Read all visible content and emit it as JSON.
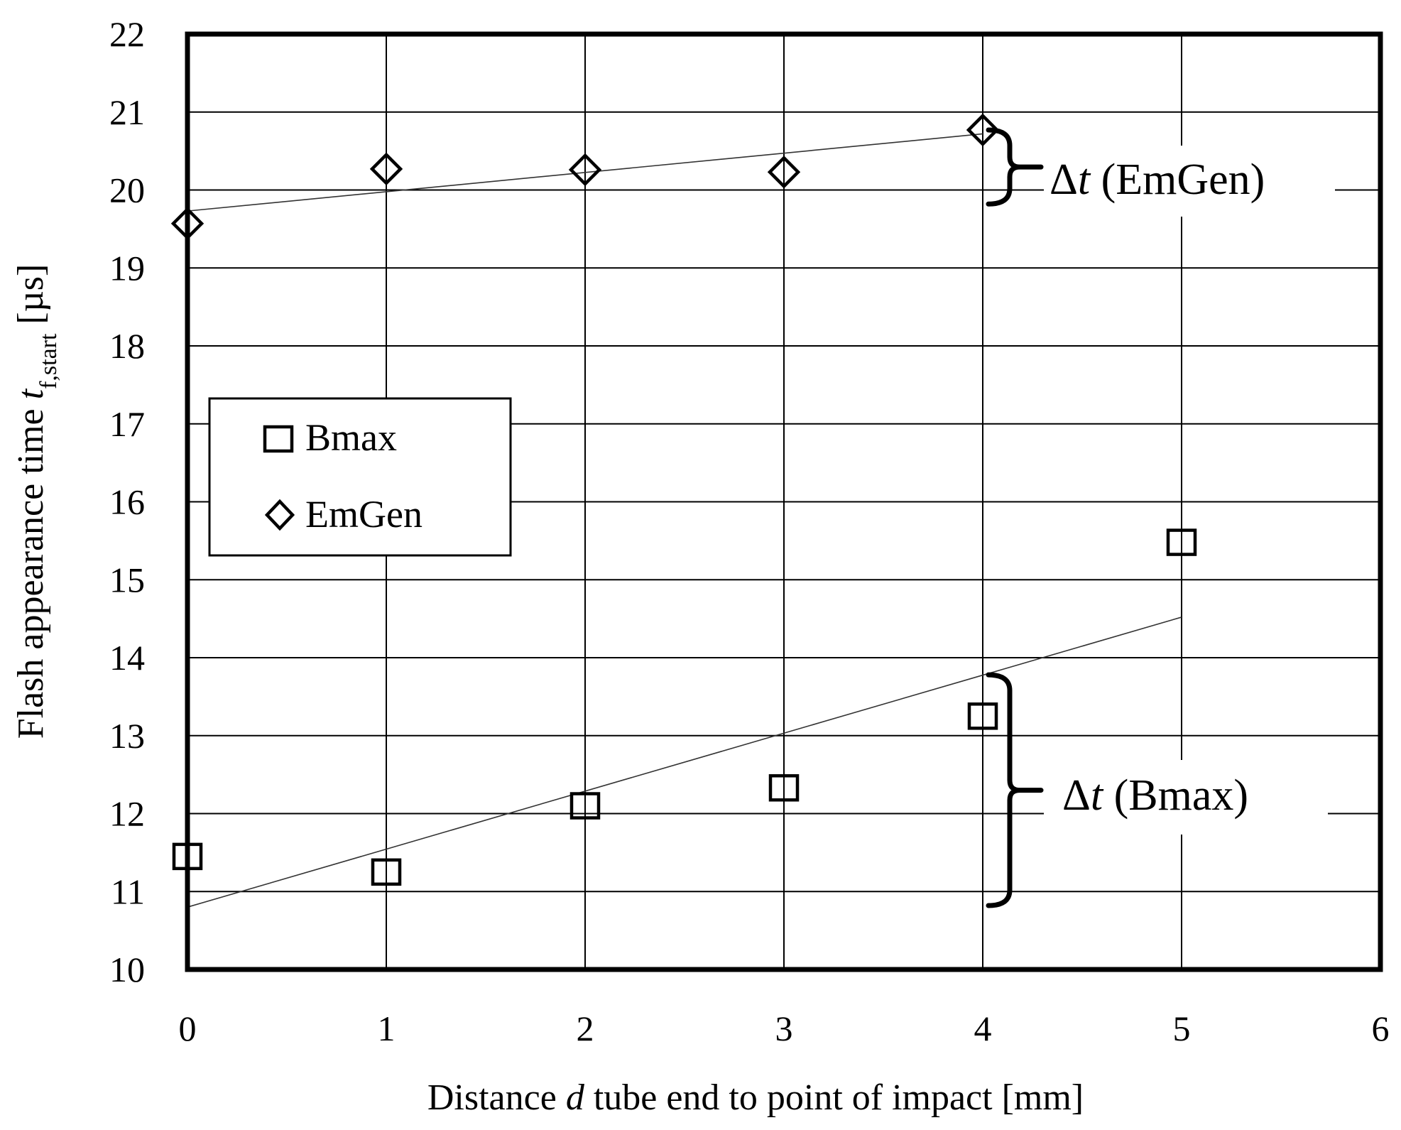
{
  "chart_data": {
    "type": "scatter",
    "title": "",
    "xlabel": {
      "prefix": "Distance ",
      "symbol": "d",
      "suffix": " tube end to point of impact [mm]"
    },
    "ylabel": {
      "prefix": "Flash appearance time ",
      "symbol": "t",
      "subscript": "f,start",
      "suffix": " [µs]"
    },
    "xlim": [
      0,
      6
    ],
    "ylim": [
      10,
      22
    ],
    "xticks": [
      "0",
      "1",
      "2",
      "3",
      "4",
      "5",
      "6"
    ],
    "yticks": [
      "10",
      "11",
      "12",
      "13",
      "14",
      "15",
      "16",
      "17",
      "18",
      "19",
      "20",
      "21",
      "22"
    ],
    "grid": true,
    "legend_position": "left-middle",
    "series": [
      {
        "name": "Bmax",
        "marker": "square",
        "x": [
          0,
          1,
          2,
          3,
          4,
          5
        ],
        "y": [
          11.45,
          11.25,
          12.1,
          12.33,
          13.25,
          15.48
        ],
        "trendline": {
          "x": [
            0,
            5
          ],
          "y": [
            10.8,
            14.52
          ]
        }
      },
      {
        "name": "EmGen",
        "marker": "diamond",
        "x": [
          0,
          1,
          2,
          3,
          4
        ],
        "y": [
          19.57,
          20.27,
          20.26,
          20.23,
          20.77
        ],
        "trendline": {
          "x": [
            0,
            4
          ],
          "y": [
            19.73,
            20.72
          ]
        }
      }
    ],
    "annotations": [
      {
        "prefix": "Δ",
        "symbol": "t",
        "label": " (EmGen)",
        "x": 4,
        "y_from": 19.82,
        "y_to": 20.77
      },
      {
        "prefix": "Δ",
        "symbol": "t",
        "label": " (Bmax)",
        "x": 4,
        "y_from": 10.82,
        "y_to": 13.78
      }
    ]
  }
}
